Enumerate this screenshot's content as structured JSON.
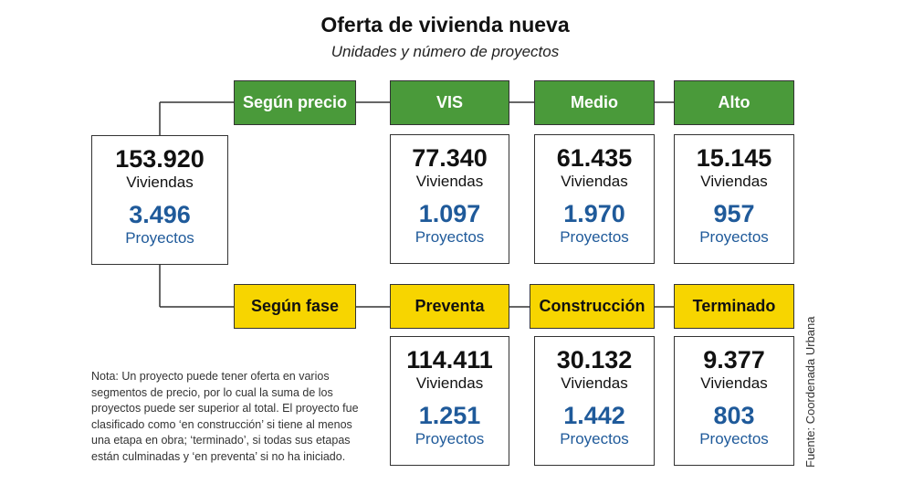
{
  "header": {
    "title": "Oferta de vivienda nueva",
    "subtitle": "Unidades y número de proyectos"
  },
  "labels": {
    "viviendas": "Viviendas",
    "proyectos": "Proyectos"
  },
  "total": {
    "viviendas": "153.920",
    "proyectos": "3.496"
  },
  "precio": {
    "label": "Según precio",
    "segments": [
      {
        "name": "VIS",
        "viviendas": "77.340",
        "proyectos": "1.097"
      },
      {
        "name": "Medio",
        "viviendas": "61.435",
        "proyectos": "1.970"
      },
      {
        "name": "Alto",
        "viviendas": "15.145",
        "proyectos": "957"
      }
    ]
  },
  "fase": {
    "label": "Según fase",
    "segments": [
      {
        "name": "Preventa",
        "viviendas": "114.411",
        "proyectos": "1.251"
      },
      {
        "name": "Construcción",
        "viviendas": "30.132",
        "proyectos": "1.442"
      },
      {
        "name": "Terminado",
        "viviendas": "9.377",
        "proyectos": "803"
      }
    ]
  },
  "note": [
    "Nota: Un proyecto puede tener oferta en varios",
    "segmentos de precio, por lo cual la suma de los",
    "proyectos puede ser superior al total. El proyecto fue",
    "clasificado como ‘en construcción’ si tiene al menos",
    "una etapa en obra; ‘terminado’, si todas sus etapas",
    "están culminadas y ‘en preventa’ si no ha iniciado."
  ],
  "source": "Fuente: Coordenada Urbana"
}
